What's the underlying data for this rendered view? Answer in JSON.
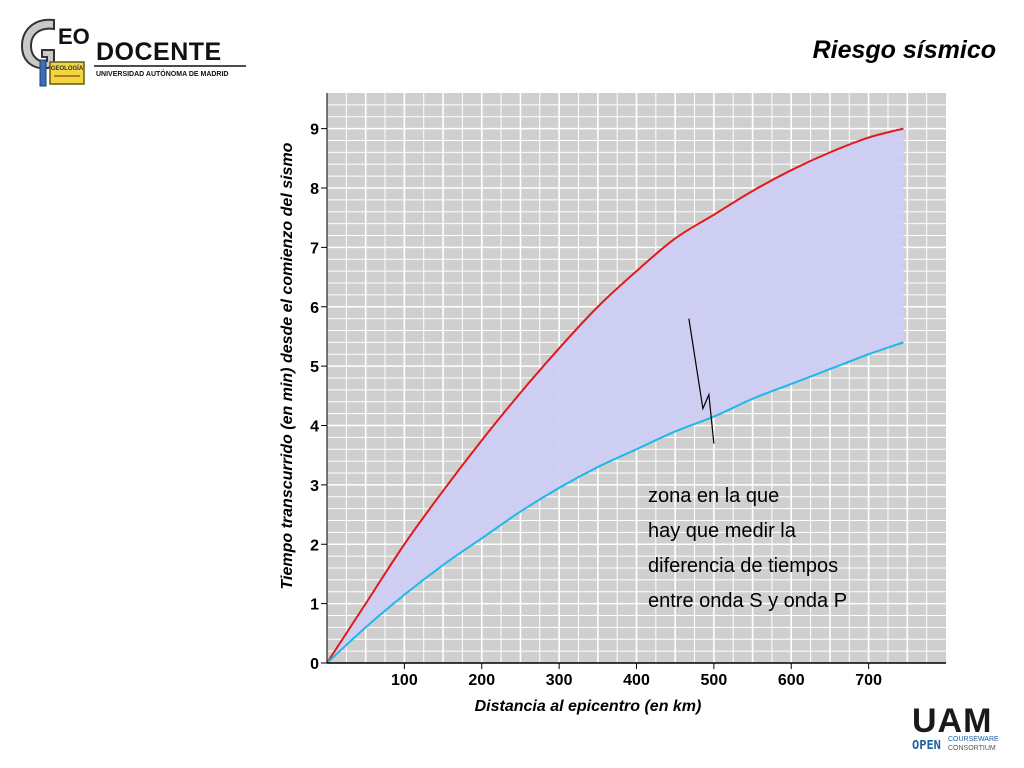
{
  "header": {
    "logo": {
      "geo_text": "EO",
      "docente_text": "DOCENTE",
      "university_text": "UNIVERSIDAD AUTÓNOMA DE MADRID",
      "book_text": "GEOLOGÍA"
    },
    "title": "Riesgo sísmico"
  },
  "footer": {
    "uam_text": "UAM",
    "open_text": "OPEN",
    "courseware_text": "COURSEWARE",
    "consortium_text": "CONSORTIUM"
  },
  "colors": {
    "plot_background": "#cfcfcf",
    "grid": "#ffffff",
    "region_fill": "#cdcdf3",
    "s_wave": "#e01b1b",
    "p_wave": "#1eb8ec"
  },
  "chart_data": {
    "type": "line",
    "title": "",
    "xlabel": "Distancia al epicentro (en km)",
    "ylabel": "Tiempo transcurrido (en min) desde el comienzo del sismo",
    "xlim": [
      0,
      800
    ],
    "ylim": [
      0,
      9.6
    ],
    "x_ticks": [
      100,
      200,
      300,
      400,
      500,
      600,
      700
    ],
    "y_ticks": [
      0,
      1,
      2,
      3,
      4,
      5,
      6,
      7,
      8,
      9
    ],
    "grid": true,
    "x": [
      0,
      50,
      100,
      150,
      200,
      250,
      300,
      350,
      400,
      450,
      500,
      550,
      600,
      650,
      700,
      745
    ],
    "series": [
      {
        "key": "s_wave",
        "color": "#e01b1b",
        "values": [
          0,
          1.0,
          2.0,
          2.9,
          3.75,
          4.55,
          5.3,
          6.0,
          6.6,
          7.15,
          7.55,
          7.95,
          8.3,
          8.6,
          8.85,
          9.0
        ]
      },
      {
        "key": "p_wave",
        "color": "#1eb8ec",
        "values": [
          0,
          0.6,
          1.15,
          1.65,
          2.1,
          2.55,
          2.95,
          3.3,
          3.6,
          3.9,
          4.15,
          4.45,
          4.7,
          4.95,
          5.2,
          5.4
        ]
      }
    ],
    "annotation": {
      "lines": [
        "zona en la que",
        "hay que medir la",
        "diferencia de tiempos",
        "entre onda S y onda P"
      ],
      "target_x": 500,
      "target_y": 5.8
    }
  }
}
